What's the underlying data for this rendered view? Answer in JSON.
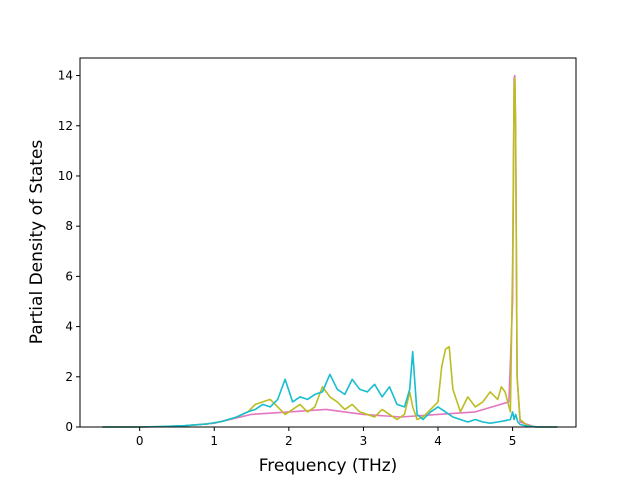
{
  "chart_data": {
    "type": "line",
    "title": "",
    "xlabel": "Frequency (THz)",
    "ylabel": "Partial Density of States",
    "xlim": [
      -0.8,
      5.85
    ],
    "ylim": [
      0,
      14.7
    ],
    "xticks": [
      0,
      1,
      2,
      3,
      4,
      5
    ],
    "yticks": [
      0,
      2,
      4,
      6,
      8,
      10,
      12,
      14
    ],
    "xtick_labels": [
      "0",
      "1",
      "2",
      "3",
      "4",
      "5"
    ],
    "ytick_labels": [
      "0",
      "2",
      "4",
      "6",
      "8",
      "10",
      "12",
      "14"
    ],
    "grid": false,
    "legend": false,
    "series": [
      {
        "color": "#e377c2",
        "x": [
          -0.5,
          0.0,
          0.5,
          1.0,
          1.5,
          2.0,
          2.5,
          3.0,
          3.5,
          4.0,
          4.5,
          4.95,
          5.0,
          5.02,
          5.03,
          5.04,
          5.06,
          5.1,
          5.3,
          5.6
        ],
        "y": [
          0,
          0,
          0.02,
          0.15,
          0.5,
          0.6,
          0.7,
          0.5,
          0.4,
          0.5,
          0.6,
          1.0,
          5.0,
          13.9,
          14.0,
          12.0,
          2.0,
          0.2,
          0,
          0
        ]
      },
      {
        "color": "#bcbd22",
        "x": [
          -0.5,
          0.0,
          0.3,
          0.6,
          0.9,
          1.1,
          1.3,
          1.45,
          1.55,
          1.65,
          1.75,
          1.85,
          1.95,
          2.05,
          2.15,
          2.25,
          2.35,
          2.45,
          2.55,
          2.65,
          2.75,
          2.85,
          2.95,
          3.05,
          3.15,
          3.25,
          3.35,
          3.45,
          3.55,
          3.62,
          3.66,
          3.72,
          3.8,
          3.9,
          4.0,
          4.05,
          4.1,
          4.15,
          4.2,
          4.3,
          4.4,
          4.5,
          4.6,
          4.7,
          4.8,
          4.85,
          4.9,
          4.97,
          5.0,
          5.02,
          5.03,
          5.04,
          5.06,
          5.1,
          5.2,
          5.35,
          5.6
        ],
        "y": [
          0,
          0,
          0.02,
          0.05,
          0.12,
          0.22,
          0.4,
          0.6,
          0.9,
          1.0,
          1.1,
          0.8,
          0.5,
          0.7,
          0.9,
          0.6,
          0.8,
          1.6,
          1.2,
          1.0,
          0.7,
          0.9,
          0.6,
          0.5,
          0.4,
          0.7,
          0.5,
          0.3,
          0.5,
          1.4,
          0.8,
          0.3,
          0.4,
          0.7,
          1.0,
          2.4,
          3.1,
          3.2,
          1.5,
          0.6,
          1.2,
          0.8,
          1.0,
          1.4,
          1.1,
          1.6,
          1.4,
          0.6,
          6.5,
          13.5,
          13.9,
          12.0,
          2.0,
          0.3,
          0.05,
          0,
          0
        ]
      },
      {
        "color": "#17becf",
        "x": [
          -0.5,
          0.0,
          0.3,
          0.6,
          0.9,
          1.1,
          1.3,
          1.45,
          1.55,
          1.65,
          1.75,
          1.85,
          1.95,
          2.05,
          2.15,
          2.25,
          2.35,
          2.45,
          2.55,
          2.65,
          2.75,
          2.85,
          2.95,
          3.05,
          3.15,
          3.25,
          3.35,
          3.45,
          3.55,
          3.62,
          3.66,
          3.72,
          3.8,
          3.9,
          4.0,
          4.1,
          4.2,
          4.3,
          4.4,
          4.5,
          4.6,
          4.7,
          4.8,
          4.9,
          4.97,
          5.0,
          5.02,
          5.04,
          5.07,
          5.1,
          5.2,
          5.35,
          5.6
        ],
        "y": [
          0,
          0,
          0.02,
          0.05,
          0.12,
          0.22,
          0.4,
          0.6,
          0.7,
          0.9,
          0.8,
          1.1,
          1.9,
          1.0,
          1.2,
          1.1,
          1.3,
          1.4,
          2.1,
          1.5,
          1.3,
          1.9,
          1.5,
          1.4,
          1.7,
          1.2,
          1.6,
          0.9,
          0.8,
          1.5,
          3.0,
          0.5,
          0.3,
          0.6,
          0.8,
          0.6,
          0.4,
          0.3,
          0.2,
          0.3,
          0.2,
          0.15,
          0.2,
          0.25,
          0.3,
          0.6,
          0.3,
          0.5,
          0.2,
          0.1,
          0.03,
          0,
          0
        ]
      }
    ]
  }
}
